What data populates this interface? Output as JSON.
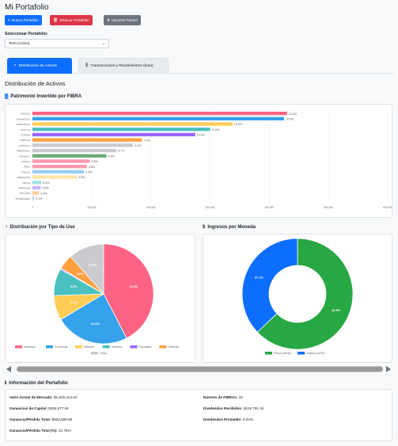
{
  "page": {
    "title": "Mi Portafolio"
  },
  "toolbar": {
    "new_label": "Nuevo Portafolio",
    "delete_label": "Eliminar Portafolio",
    "import_label": "Importar Trades"
  },
  "selector": {
    "label": "Seleccionar Portafolio:",
    "value": "Test (Activo)"
  },
  "tabs": [
    {
      "label": "Distribución de Activos",
      "icon": "pie-chart-icon"
    },
    {
      "label": "Transacciones y Rendimientos (beta)",
      "icon": "dollar-icon"
    }
  ],
  "section": {
    "title": "Distribución de Activos"
  },
  "bar_card": {
    "title": "Patrimonio Invertido por FIBRA",
    "icon": "bar-chart-icon"
  },
  "pie_card": {
    "title": "Distribución por Tipo de Uso",
    "icon": "pie-chart-icon"
  },
  "donut_card": {
    "title": "Ingresos por Moneda",
    "icon": "dollar-icon"
  },
  "info": {
    "title": "Información del Portafolio",
    "icon": "info-icon",
    "left": [
      {
        "label": "Valor Actual de Mercado:",
        "value": "$1,526,313.64"
      },
      {
        "label": "Ganancias de Capital:",
        "value": "$365,677.64"
      },
      {
        "label": "Ganancia/Pérdida Total:",
        "value": "$802,668.98"
      },
      {
        "label": "Ganancia/Pérdida Total (%):",
        "value": "22.76%"
      }
    ],
    "right": [
      {
        "label": "Número de FIBRAs:",
        "value": "16"
      },
      {
        "label": "Dividendos Recibidos:",
        "value": "$416,791.34"
      },
      {
        "label": "Dividendos Promedio:",
        "value": "9.94%"
      }
    ]
  },
  "chart_data": [
    {
      "type": "bar",
      "orientation": "horizontal",
      "title": "Patrimonio Invertido por FIBRA",
      "categories": [
        "FUNO11",
        "DANHOS13",
        "FIBRAMQ12",
        "FMTY14",
        "FCFE18",
        "FIBHO12",
        "FSHOP13",
        "FIBRAPL14",
        "FNOVA17",
        "FINN13",
        "FMX8",
        "FIHO12",
        "FIBRAUP18",
        "VESTA",
        "FIBRAM18",
        "FPLUS16",
        "STORAGE18"
      ],
      "values": [
        430000,
        425000,
        338000,
        300000,
        275000,
        185000,
        170000,
        142000,
        125000,
        97000,
        92000,
        87000,
        75000,
        15000,
        14000,
        11000,
        3000
      ],
      "data_labels": [
        "15.2%",
        "14.9%",
        "12.6%",
        "11.6%",
        "10.4%",
        "7.0%",
        "6.4%",
        "5.7%",
        "4.6%",
        "3.8%",
        "3.8%",
        "3.4%",
        "2.8%",
        "0.5%",
        "0.5%",
        "0.4%",
        "0.1%"
      ],
      "colors": [
        "#ff6384",
        "#36a2eb",
        "#ffcd56",
        "#4bc0c0",
        "#9966ff",
        "#ff9f40",
        "#c9cbcf",
        "#c9cbcf",
        "#6aaa7a",
        "#ff9aae",
        "#ff9aae",
        "#9ad0f5",
        "#ffe6a6",
        "#a5dfdf",
        "#ccb3ff",
        "#ffcf9f",
        "#c9cbcf"
      ],
      "xlim": [
        0,
        600000
      ],
      "x_ticks": [
        "0",
        "100,000",
        "200,000",
        "300,000",
        "400,000",
        "500,000",
        "600,000"
      ]
    },
    {
      "type": "pie",
      "title": "Distribución por Tipo de Uso",
      "labels": [
        "Industrial",
        "Comercial",
        "Oficinas",
        "Hotelero",
        "Educativo",
        "Vivienda",
        "Otros"
      ],
      "values": [
        43.3,
        24.6,
        8.2,
        9.0,
        0.4,
        4.9,
        11.8
      ],
      "slice_labels": [
        "43.3%",
        "24.6%",
        "8.2%",
        "9.0%",
        "",
        "4.9%",
        "11.8%"
      ],
      "colors": [
        "#ff6384",
        "#36a2eb",
        "#ffcd56",
        "#4bc0c0",
        "#9966ff",
        "#ff9f40",
        "#c9cbcf"
      ]
    },
    {
      "type": "pie",
      "subtype": "donut",
      "title": "Ingresos por Moneda",
      "labels": [
        "Pesos (MXN)",
        "Dólares (USD)"
      ],
      "values": [
        62.9,
        37.1
      ],
      "slice_labels": [
        "62.9%",
        "37.1%"
      ],
      "colors": [
        "#28a745",
        "#0d6efd"
      ]
    }
  ]
}
